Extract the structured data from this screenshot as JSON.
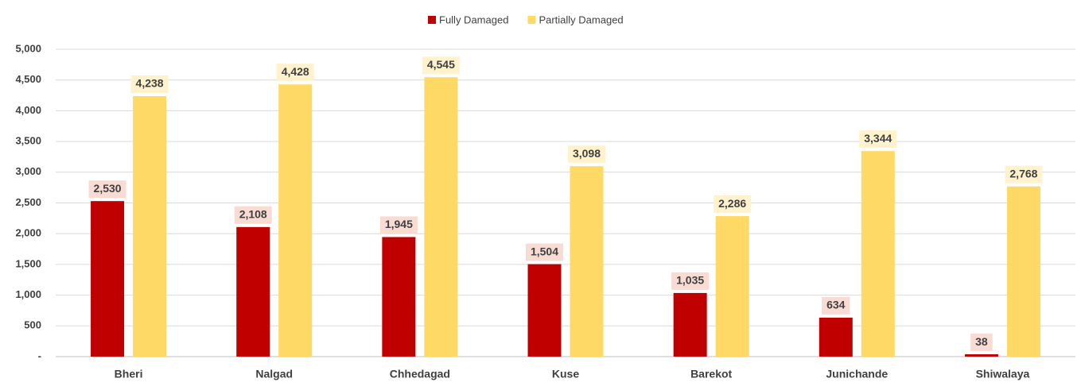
{
  "chart_data": {
    "type": "bar",
    "categories": [
      "Bheri",
      "Nalgad",
      "Chhedagad",
      "Kuse",
      "Barekot",
      "Junichande",
      "Shiwalaya"
    ],
    "series": [
      {
        "name": "Fully Damaged",
        "color": "#c00000",
        "values": [
          2530,
          2108,
          1945,
          1504,
          1035,
          634,
          38
        ],
        "value_labels": [
          "2,530",
          "2,108",
          "1,945",
          "1,504",
          "1,035",
          "634",
          "38"
        ]
      },
      {
        "name": "Partially Damaged",
        "color": "#ffd966",
        "values": [
          4238,
          4428,
          4545,
          3098,
          2286,
          3344,
          2768
        ],
        "value_labels": [
          "4,238",
          "4,428",
          "4,545",
          "3,098",
          "2,286",
          "3,344",
          "2,768"
        ]
      }
    ],
    "ylim": [
      0,
      5000
    ],
    "yticks": [
      {
        "value": 0,
        "label": "-"
      },
      500,
      {
        "value": 1000,
        "label": "1,000"
      },
      {
        "value": 1500,
        "label": "1,500"
      },
      {
        "value": 2000,
        "label": "2,000"
      },
      {
        "value": 2500,
        "label": "2,500"
      },
      {
        "value": 3000,
        "label": "3,000"
      },
      {
        "value": 3500,
        "label": "3,500"
      },
      {
        "value": 4000,
        "label": "4,000"
      },
      {
        "value": 4500,
        "label": "4,500"
      },
      {
        "value": 5000,
        "label": "5,000"
      }
    ],
    "grid": true,
    "legend": "top"
  }
}
